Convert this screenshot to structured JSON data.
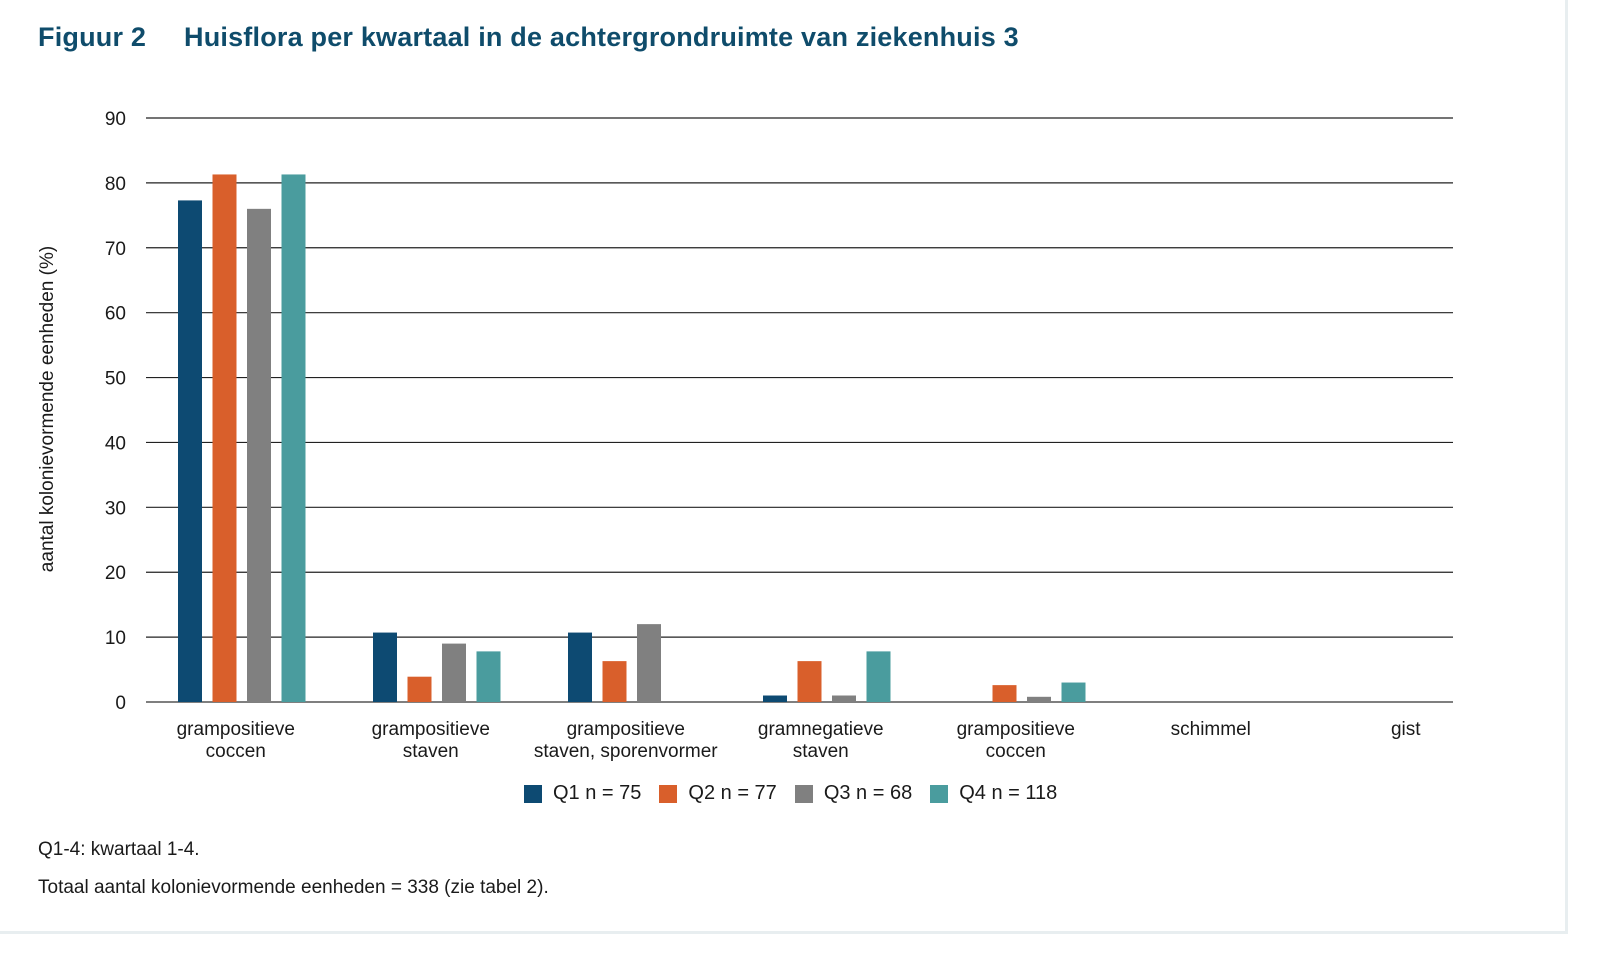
{
  "figure": {
    "number": "Figuur 2",
    "title": "Huisflora per kwartaal in de achtergrondruimte van ziekenhuis 3"
  },
  "legend": [
    {
      "label": "Q1 n = 75",
      "color": "#0d4a72"
    },
    {
      "label": "Q2 n = 77",
      "color": "#d95f2b"
    },
    {
      "label": "Q3 n = 68",
      "color": "#808080"
    },
    {
      "label": "Q4 n = 118",
      "color": "#4a9c9e"
    }
  ],
  "notes": {
    "line1": "Q1-4: kwartaal 1-4.",
    "line2": "Totaal aantal kolonievormende eenheden = 338 (zie tabel 2)."
  },
  "chart_data": {
    "type": "bar",
    "title": "Huisflora per kwartaal in de achtergrondruimte van ziekenhuis 3",
    "xlabel": "",
    "ylabel": "aantal kolonievormende eenheden (%)",
    "ylim": [
      0,
      90
    ],
    "yticks": [
      0,
      10,
      20,
      30,
      40,
      50,
      60,
      70,
      80,
      90
    ],
    "grid": true,
    "legend_position": "bottom",
    "categories": [
      [
        "grampositieve",
        "coccen"
      ],
      [
        "grampositieve",
        "staven"
      ],
      [
        "grampositieve",
        "staven, sporenvormer"
      ],
      [
        "gramnegatieve",
        "staven"
      ],
      [
        "grampositieve",
        "coccen"
      ],
      [
        "schimmel"
      ],
      [
        "gist"
      ]
    ],
    "series": [
      {
        "name": "Q1 n = 75",
        "color": "#0d4a72",
        "values": [
          77.3,
          10.7,
          10.7,
          1.0,
          0,
          0,
          0
        ]
      },
      {
        "name": "Q2 n = 77",
        "color": "#d95f2b",
        "values": [
          81.3,
          3.9,
          6.3,
          6.3,
          2.6,
          0,
          0
        ]
      },
      {
        "name": "Q3 n = 68",
        "color": "#808080",
        "values": [
          76.0,
          9.0,
          12.0,
          1.0,
          0.8,
          0,
          0
        ]
      },
      {
        "name": "Q4 n = 118",
        "color": "#4a9c9e",
        "values": [
          81.3,
          7.8,
          0,
          7.8,
          3.0,
          0,
          0
        ]
      }
    ]
  }
}
